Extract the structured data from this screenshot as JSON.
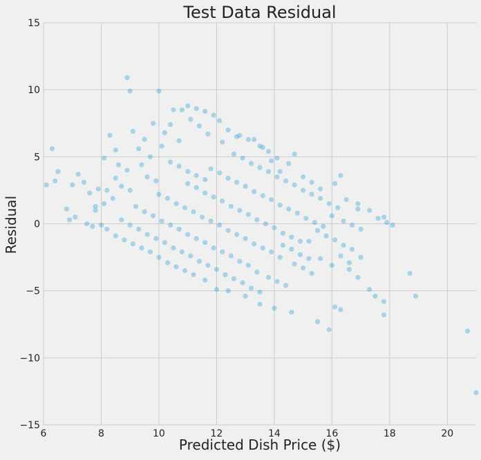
{
  "chart_data": {
    "type": "scatter",
    "title": "Test Data Residual",
    "xlabel": "Predicted Dish Price ($)",
    "ylabel": "Residual",
    "xlim": [
      6,
      21
    ],
    "ylim": [
      -15,
      15
    ],
    "xticks": [
      6,
      8,
      10,
      12,
      14,
      16,
      18,
      20
    ],
    "yticks": [
      -15,
      -10,
      -5,
      0,
      5,
      10,
      15
    ],
    "xtick_labels": [
      "6",
      "8",
      "10",
      "12",
      "14",
      "16",
      "18",
      "20"
    ],
    "ytick_labels": [
      "−15",
      "−10",
      "−5",
      "0",
      "5",
      "10",
      "15"
    ],
    "grid": true,
    "colors": {
      "point": "#008fd5",
      "background": "#f0f0f0",
      "grid": "#cbcbcb",
      "text": "#222222"
    },
    "point_alpha": 0.3,
    "series": [
      {
        "points": [
          [
            6.1,
            2.9
          ],
          [
            6.3,
            5.6
          ],
          [
            6.5,
            3.9
          ],
          [
            6.4,
            3.2
          ],
          [
            6.8,
            1.1
          ],
          [
            7.0,
            2.9
          ],
          [
            7.2,
            3.7
          ],
          [
            7.1,
            0.5
          ],
          [
            6.9,
            0.3
          ],
          [
            7.5,
            0.0
          ],
          [
            7.4,
            3.1
          ],
          [
            7.6,
            2.3
          ],
          [
            7.8,
            1.3
          ],
          [
            7.7,
            -0.2
          ],
          [
            7.9,
            2.6
          ],
          [
            8.0,
            -0.1
          ],
          [
            8.1,
            4.9
          ],
          [
            8.3,
            6.6
          ],
          [
            8.5,
            5.5
          ],
          [
            8.6,
            4.4
          ],
          [
            8.9,
            10.9
          ],
          [
            9.0,
            9.9
          ],
          [
            9.1,
            6.9
          ],
          [
            9.3,
            5.6
          ],
          [
            9.5,
            6.3
          ],
          [
            9.8,
            7.5
          ],
          [
            10.0,
            9.9
          ],
          [
            10.2,
            6.8
          ],
          [
            10.4,
            7.4
          ],
          [
            10.5,
            8.5
          ],
          [
            10.8,
            8.5
          ],
          [
            11.0,
            8.8
          ],
          [
            11.3,
            8.6
          ],
          [
            11.6,
            8.4
          ],
          [
            11.9,
            8.1
          ],
          [
            12.1,
            7.7
          ],
          [
            12.4,
            7.0
          ],
          [
            12.7,
            6.5
          ],
          [
            13.1,
            6.3
          ],
          [
            13.5,
            5.8
          ],
          [
            13.8,
            5.4
          ],
          [
            14.1,
            4.9
          ],
          [
            14.5,
            4.5
          ],
          [
            14.7,
            5.2
          ],
          [
            15.0,
            3.5
          ],
          [
            15.3,
            3.1
          ],
          [
            15.6,
            2.6
          ],
          [
            16.1,
            3.0
          ],
          [
            16.3,
            3.6
          ],
          [
            16.5,
            1.8
          ],
          [
            16.9,
            1.5
          ],
          [
            17.3,
            1.0
          ],
          [
            17.6,
            0.4
          ],
          [
            17.9,
            0.1
          ],
          [
            18.1,
            -0.1
          ],
          [
            17.8,
            0.5
          ],
          [
            15.2,
            -1.3
          ],
          [
            15.6,
            -2.6
          ],
          [
            16.0,
            -3.1
          ],
          [
            16.1,
            -6.2
          ],
          [
            16.3,
            -6.4
          ],
          [
            15.9,
            -7.9
          ],
          [
            15.5,
            -7.3
          ],
          [
            14.6,
            -6.6
          ],
          [
            14.0,
            -6.3
          ],
          [
            13.5,
            -6.0
          ],
          [
            13.0,
            -5.4
          ],
          [
            12.4,
            -5.0
          ],
          [
            12.0,
            -4.9
          ],
          [
            11.6,
            -4.2
          ],
          [
            16.6,
            -2.9
          ],
          [
            17.0,
            -2.5
          ],
          [
            17.3,
            -4.9
          ],
          [
            17.5,
            -5.4
          ],
          [
            17.8,
            -5.8
          ],
          [
            17.8,
            -6.8
          ],
          [
            18.7,
            -3.7
          ],
          [
            18.9,
            -5.4
          ],
          [
            20.7,
            -8.0
          ],
          [
            21.0,
            -12.6
          ],
          [
            8.2,
            -0.4
          ],
          [
            8.5,
            -0.9
          ],
          [
            8.8,
            -1.2
          ],
          [
            9.1,
            -1.5
          ],
          [
            9.4,
            -1.8
          ],
          [
            9.7,
            -2.1
          ],
          [
            10.0,
            -2.5
          ],
          [
            10.3,
            -2.9
          ],
          [
            10.6,
            -3.2
          ],
          [
            10.9,
            -3.5
          ],
          [
            11.2,
            -3.8
          ],
          [
            8.7,
            0.3
          ],
          [
            9.0,
            -0.1
          ],
          [
            9.3,
            -0.4
          ],
          [
            9.6,
            -0.8
          ],
          [
            9.9,
            -1.1
          ],
          [
            10.2,
            -1.4
          ],
          [
            10.5,
            -1.8
          ],
          [
            10.8,
            -2.1
          ],
          [
            11.1,
            -2.4
          ],
          [
            11.4,
            -2.8
          ],
          [
            11.7,
            -3.1
          ],
          [
            12.0,
            -3.4
          ],
          [
            9.2,
            1.3
          ],
          [
            9.5,
            0.9
          ],
          [
            9.8,
            0.6
          ],
          [
            10.1,
            0.2
          ],
          [
            10.4,
            -0.1
          ],
          [
            10.7,
            -0.4
          ],
          [
            11.0,
            -0.8
          ],
          [
            11.3,
            -1.1
          ],
          [
            11.6,
            -1.4
          ],
          [
            11.9,
            -1.8
          ],
          [
            12.2,
            -2.1
          ],
          [
            12.5,
            -2.4
          ],
          [
            12.8,
            -2.8
          ],
          [
            13.1,
            -3.1
          ],
          [
            10.0,
            2.2
          ],
          [
            10.3,
            1.9
          ],
          [
            10.6,
            1.5
          ],
          [
            10.9,
            1.2
          ],
          [
            11.2,
            0.9
          ],
          [
            11.5,
            0.5
          ],
          [
            11.8,
            0.2
          ],
          [
            12.1,
            -0.1
          ],
          [
            12.4,
            -0.5
          ],
          [
            12.7,
            -0.8
          ],
          [
            13.0,
            -1.1
          ],
          [
            13.3,
            -1.5
          ],
          [
            13.6,
            -1.8
          ],
          [
            13.9,
            -2.1
          ],
          [
            14.2,
            -2.5
          ],
          [
            11.0,
            3.0
          ],
          [
            11.3,
            2.7
          ],
          [
            11.6,
            2.3
          ],
          [
            11.9,
            2.0
          ],
          [
            12.2,
            1.7
          ],
          [
            12.5,
            1.3
          ],
          [
            12.8,
            1.0
          ],
          [
            13.1,
            0.7
          ],
          [
            13.4,
            0.3
          ],
          [
            13.7,
            0.0
          ],
          [
            14.0,
            -0.3
          ],
          [
            14.3,
            -0.7
          ],
          [
            14.6,
            -1.0
          ],
          [
            14.9,
            -1.3
          ],
          [
            11.8,
            4.1
          ],
          [
            12.1,
            3.8
          ],
          [
            12.4,
            3.4
          ],
          [
            12.7,
            3.1
          ],
          [
            13.0,
            2.8
          ],
          [
            13.3,
            2.4
          ],
          [
            13.6,
            2.1
          ],
          [
            13.9,
            1.8
          ],
          [
            14.2,
            1.4
          ],
          [
            14.5,
            1.1
          ],
          [
            14.8,
            0.8
          ],
          [
            15.1,
            0.4
          ],
          [
            15.4,
            0.1
          ],
          [
            15.7,
            -0.2
          ],
          [
            12.6,
            5.2
          ],
          [
            12.9,
            4.9
          ],
          [
            13.2,
            4.5
          ],
          [
            13.5,
            4.2
          ],
          [
            13.8,
            3.9
          ],
          [
            14.1,
            3.5
          ],
          [
            14.4,
            3.2
          ],
          [
            14.7,
            2.9
          ],
          [
            15.0,
            2.5
          ],
          [
            15.3,
            2.2
          ],
          [
            15.6,
            1.9
          ],
          [
            15.9,
            1.5
          ],
          [
            16.2,
            1.2
          ],
          [
            10.4,
            4.6
          ],
          [
            10.7,
            4.3
          ],
          [
            11.0,
            3.9
          ],
          [
            11.3,
            3.6
          ],
          [
            11.6,
            3.3
          ],
          [
            9.6,
            3.5
          ],
          [
            9.9,
            3.2
          ],
          [
            9.0,
            2.5
          ],
          [
            8.7,
            2.8
          ],
          [
            8.4,
            1.9
          ],
          [
            8.1,
            1.5
          ],
          [
            7.8,
            1.0
          ],
          [
            12.3,
            -3.8
          ],
          [
            12.6,
            -4.1
          ],
          [
            12.9,
            -4.4
          ],
          [
            13.2,
            -4.8
          ],
          [
            13.5,
            -5.1
          ],
          [
            13.4,
            -3.6
          ],
          [
            13.8,
            -4.0
          ],
          [
            14.1,
            -4.3
          ],
          [
            14.4,
            -4.6
          ],
          [
            14.7,
            -3.0
          ],
          [
            15.0,
            -3.3
          ],
          [
            15.3,
            -3.7
          ],
          [
            14.3,
            -1.6
          ],
          [
            14.6,
            -1.9
          ],
          [
            14.9,
            -2.3
          ],
          [
            15.2,
            -2.6
          ],
          [
            15.5,
            -0.5
          ],
          [
            15.8,
            -0.9
          ],
          [
            16.1,
            -1.2
          ],
          [
            16.4,
            -1.6
          ],
          [
            16.7,
            -1.9
          ],
          [
            16.0,
            0.6
          ],
          [
            16.4,
            0.2
          ],
          [
            16.7,
            -0.1
          ],
          [
            17.0,
            -0.4
          ],
          [
            16.9,
            1.1
          ],
          [
            16.3,
            -2.4
          ],
          [
            16.6,
            -3.4
          ],
          [
            16.9,
            -4.0
          ],
          [
            14.2,
            3.9
          ],
          [
            13.9,
            4.7
          ],
          [
            13.6,
            5.7
          ],
          [
            13.3,
            6.3
          ],
          [
            12.8,
            6.6
          ],
          [
            12.2,
            6.1
          ],
          [
            11.7,
            6.7
          ],
          [
            11.4,
            7.3
          ],
          [
            11.1,
            7.8
          ],
          [
            10.7,
            6.2
          ],
          [
            10.1,
            5.8
          ],
          [
            9.7,
            5.0
          ],
          [
            9.4,
            4.4
          ],
          [
            8.9,
            4.0
          ],
          [
            8.5,
            3.4
          ],
          [
            8.2,
            2.5
          ]
        ]
      }
    ]
  }
}
